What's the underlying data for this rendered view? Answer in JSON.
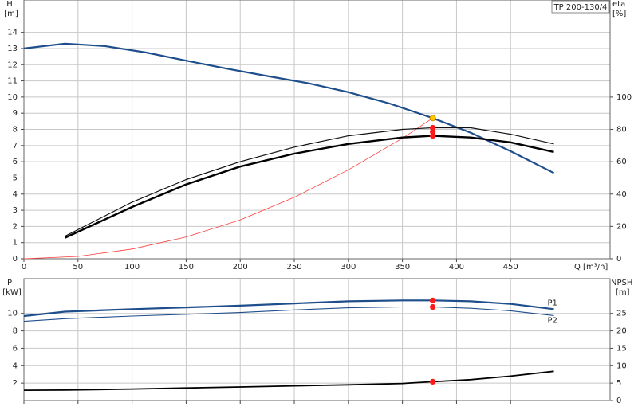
{
  "chart_data": [
    {
      "type": "line",
      "title": "TP 200-130/4",
      "x_label": "Q [m³/h]",
      "y_label": "H",
      "y_unit": "[m]",
      "y2_label": "eta",
      "y2_unit": "[%]",
      "xlim": [
        0,
        542
      ],
      "xticks": [
        0,
        50,
        100,
        150,
        200,
        250,
        300,
        350,
        400,
        450
      ],
      "ylim": [
        0,
        16
      ],
      "yticks": [
        0,
        1,
        2,
        3,
        4,
        5,
        6,
        7,
        8,
        9,
        10,
        11,
        12,
        13,
        14
      ],
      "y2lim": [
        0,
        160
      ],
      "y2ticks": [
        0,
        20,
        40,
        60,
        80,
        100
      ],
      "grid": true,
      "series": [
        {
          "color": "#1f4e8c",
          "width": 2.2,
          "x": [
            0,
            38,
            75,
            113,
            150,
            188,
            225,
            263,
            300,
            338,
            378,
            413,
            450,
            490
          ],
          "values": [
            13.0,
            13.3,
            13.15,
            12.75,
            12.25,
            11.75,
            11.3,
            10.85,
            10.3,
            9.6,
            8.7,
            7.8,
            6.65,
            5.3
          ]
        },
        {
          "color": "#ff3b3b",
          "width": 0.8,
          "x": [
            0,
            50,
            100,
            150,
            200,
            250,
            300,
            350,
            378
          ],
          "values": [
            0,
            0.15,
            0.6,
            1.35,
            2.4,
            3.8,
            5.5,
            7.45,
            8.7
          ]
        },
        {
          "color": "#111111",
          "width": 1.2,
          "axis": "y2",
          "x": [
            38,
            100,
            150,
            200,
            250,
            300,
            350,
            378,
            413,
            450,
            490
          ],
          "values": [
            14,
            35,
            49,
            60,
            69,
            76,
            80,
            81,
            81,
            77,
            71
          ]
        },
        {
          "color": "#000000",
          "width": 2.4,
          "axis": "y2",
          "x": [
            38,
            100,
            150,
            200,
            250,
            300,
            350,
            378,
            413,
            450,
            490
          ],
          "values": [
            13,
            32,
            46,
            57,
            65,
            71,
            75,
            76,
            75,
            72,
            66
          ]
        }
      ],
      "markers": [
        {
          "x": 378,
          "y": 8.7,
          "color": "#ffc400"
        },
        {
          "x": 378,
          "y": 81,
          "axis": "y2",
          "color": "#ff1a1a"
        },
        {
          "x": 378,
          "y": 78.5,
          "axis": "y2",
          "color": "#ff1a1a"
        },
        {
          "x": 378,
          "y": 76,
          "axis": "y2",
          "color": "#ff1a1a"
        }
      ]
    },
    {
      "type": "line",
      "y_label": "P",
      "y_unit": "[kW]",
      "y2_label": "NPSH",
      "y2_unit": "[m]",
      "xlim": [
        0,
        542
      ],
      "xticks": [
        0,
        50,
        100,
        150,
        200,
        250,
        300,
        350,
        400,
        450
      ],
      "ylim": [
        0,
        14
      ],
      "yticks": [
        2,
        4,
        6,
        8,
        10
      ],
      "y2lim": [
        0,
        35
      ],
      "y2ticks": [
        0,
        5,
        10,
        15,
        20,
        25
      ],
      "grid": true,
      "series": [
        {
          "name": "P1",
          "color": "#1f4e8c",
          "width": 2.2,
          "x": [
            0,
            38,
            100,
            150,
            200,
            250,
            300,
            350,
            378,
            413,
            450,
            490
          ],
          "values": [
            9.7,
            10.2,
            10.5,
            10.7,
            10.9,
            11.15,
            11.4,
            11.5,
            11.5,
            11.4,
            11.1,
            10.5
          ]
        },
        {
          "name": "P2",
          "color": "#1f4e8c",
          "width": 1.1,
          "x": [
            0,
            38,
            100,
            150,
            200,
            250,
            300,
            350,
            378,
            413,
            450,
            490
          ],
          "values": [
            9.1,
            9.4,
            9.7,
            9.9,
            10.1,
            10.4,
            10.65,
            10.75,
            10.75,
            10.6,
            10.3,
            9.75
          ]
        },
        {
          "color": "#000000",
          "width": 1.8,
          "axis": "y2",
          "x": [
            0,
            38,
            100,
            150,
            200,
            250,
            300,
            350,
            378,
            413,
            450,
            490
          ],
          "values": [
            2.95,
            3.0,
            3.3,
            3.6,
            3.9,
            4.2,
            4.5,
            4.9,
            5.4,
            6.0,
            7.0,
            8.4
          ]
        }
      ],
      "markers": [
        {
          "x": 378,
          "y": 11.5,
          "color": "#ff1a1a"
        },
        {
          "x": 378,
          "y": 10.75,
          "color": "#ff1a1a"
        },
        {
          "x": 378,
          "y": 5.4,
          "axis": "y2",
          "color": "#ff1a1a"
        }
      ]
    }
  ]
}
